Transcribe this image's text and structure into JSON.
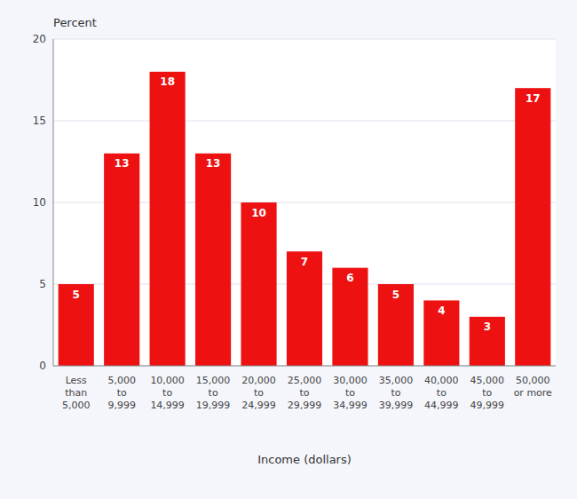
{
  "chart_data": {
    "type": "bar",
    "categories": [
      "Less\nthan\n5,000",
      "5,000\nto\n9,999",
      "10,000\nto\n14,999",
      "15,000\nto\n19,999",
      "20,000\nto\n24,999",
      "25,000\nto\n29,999",
      "30,000\nto\n34,999",
      "35,000\nto\n39,999",
      "40,000\nto\n44,999",
      "45,000\nto\n49,999",
      "50,000\nor more"
    ],
    "values": [
      5,
      13,
      18,
      13,
      10,
      7,
      6,
      5,
      4,
      3,
      17
    ],
    "color": "#ee1111",
    "y_label": "Percent",
    "x_label": "Income (dollars)",
    "ylim": [
      0,
      20
    ],
    "yticks": [
      0,
      5,
      10,
      15,
      20
    ],
    "grid": true,
    "data_labels": true
  }
}
